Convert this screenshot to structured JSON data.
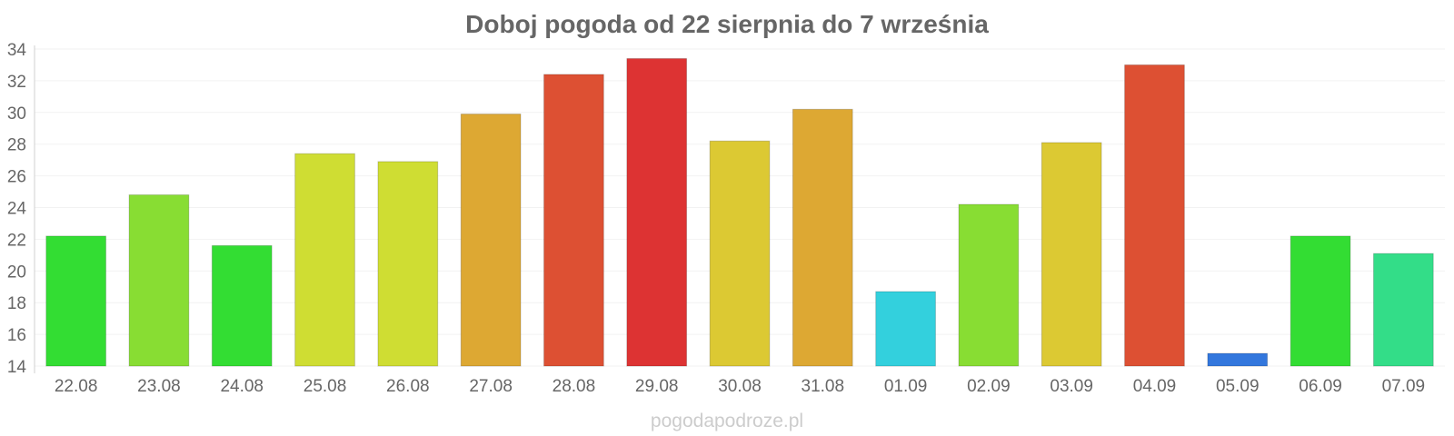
{
  "chart_data": {
    "type": "bar",
    "title": "Doboj pogoda od 22 sierpnia do 7 września",
    "xlabel": "",
    "ylabel": "",
    "categories": [
      "22.08",
      "23.08",
      "24.08",
      "25.08",
      "26.08",
      "27.08",
      "28.08",
      "29.08",
      "30.08",
      "31.08",
      "01.09",
      "02.09",
      "03.09",
      "04.09",
      "05.09",
      "06.09",
      "07.09"
    ],
    "values": [
      22.2,
      24.8,
      21.6,
      27.4,
      26.9,
      29.9,
      32.4,
      33.4,
      28.2,
      30.2,
      18.7,
      24.2,
      28.1,
      33.0,
      14.8,
      22.2,
      21.1
    ],
    "colors": [
      "#33dd33",
      "#88dd33",
      "#33dd33",
      "#cfdd33",
      "#cfdd33",
      "#dda833",
      "#dd5033",
      "#dd3333",
      "#dcc933",
      "#dda833",
      "#33d0dd",
      "#88dd33",
      "#dcc933",
      "#dd5033",
      "#3377dd",
      "#33dd33",
      "#33dd88"
    ],
    "ylim": [
      14,
      34
    ],
    "yticks": [
      14,
      16,
      18,
      20,
      22,
      24,
      26,
      28,
      30,
      32,
      34
    ],
    "grid": true,
    "legend": "none"
  },
  "watermark": "pogodapodroze.pl"
}
